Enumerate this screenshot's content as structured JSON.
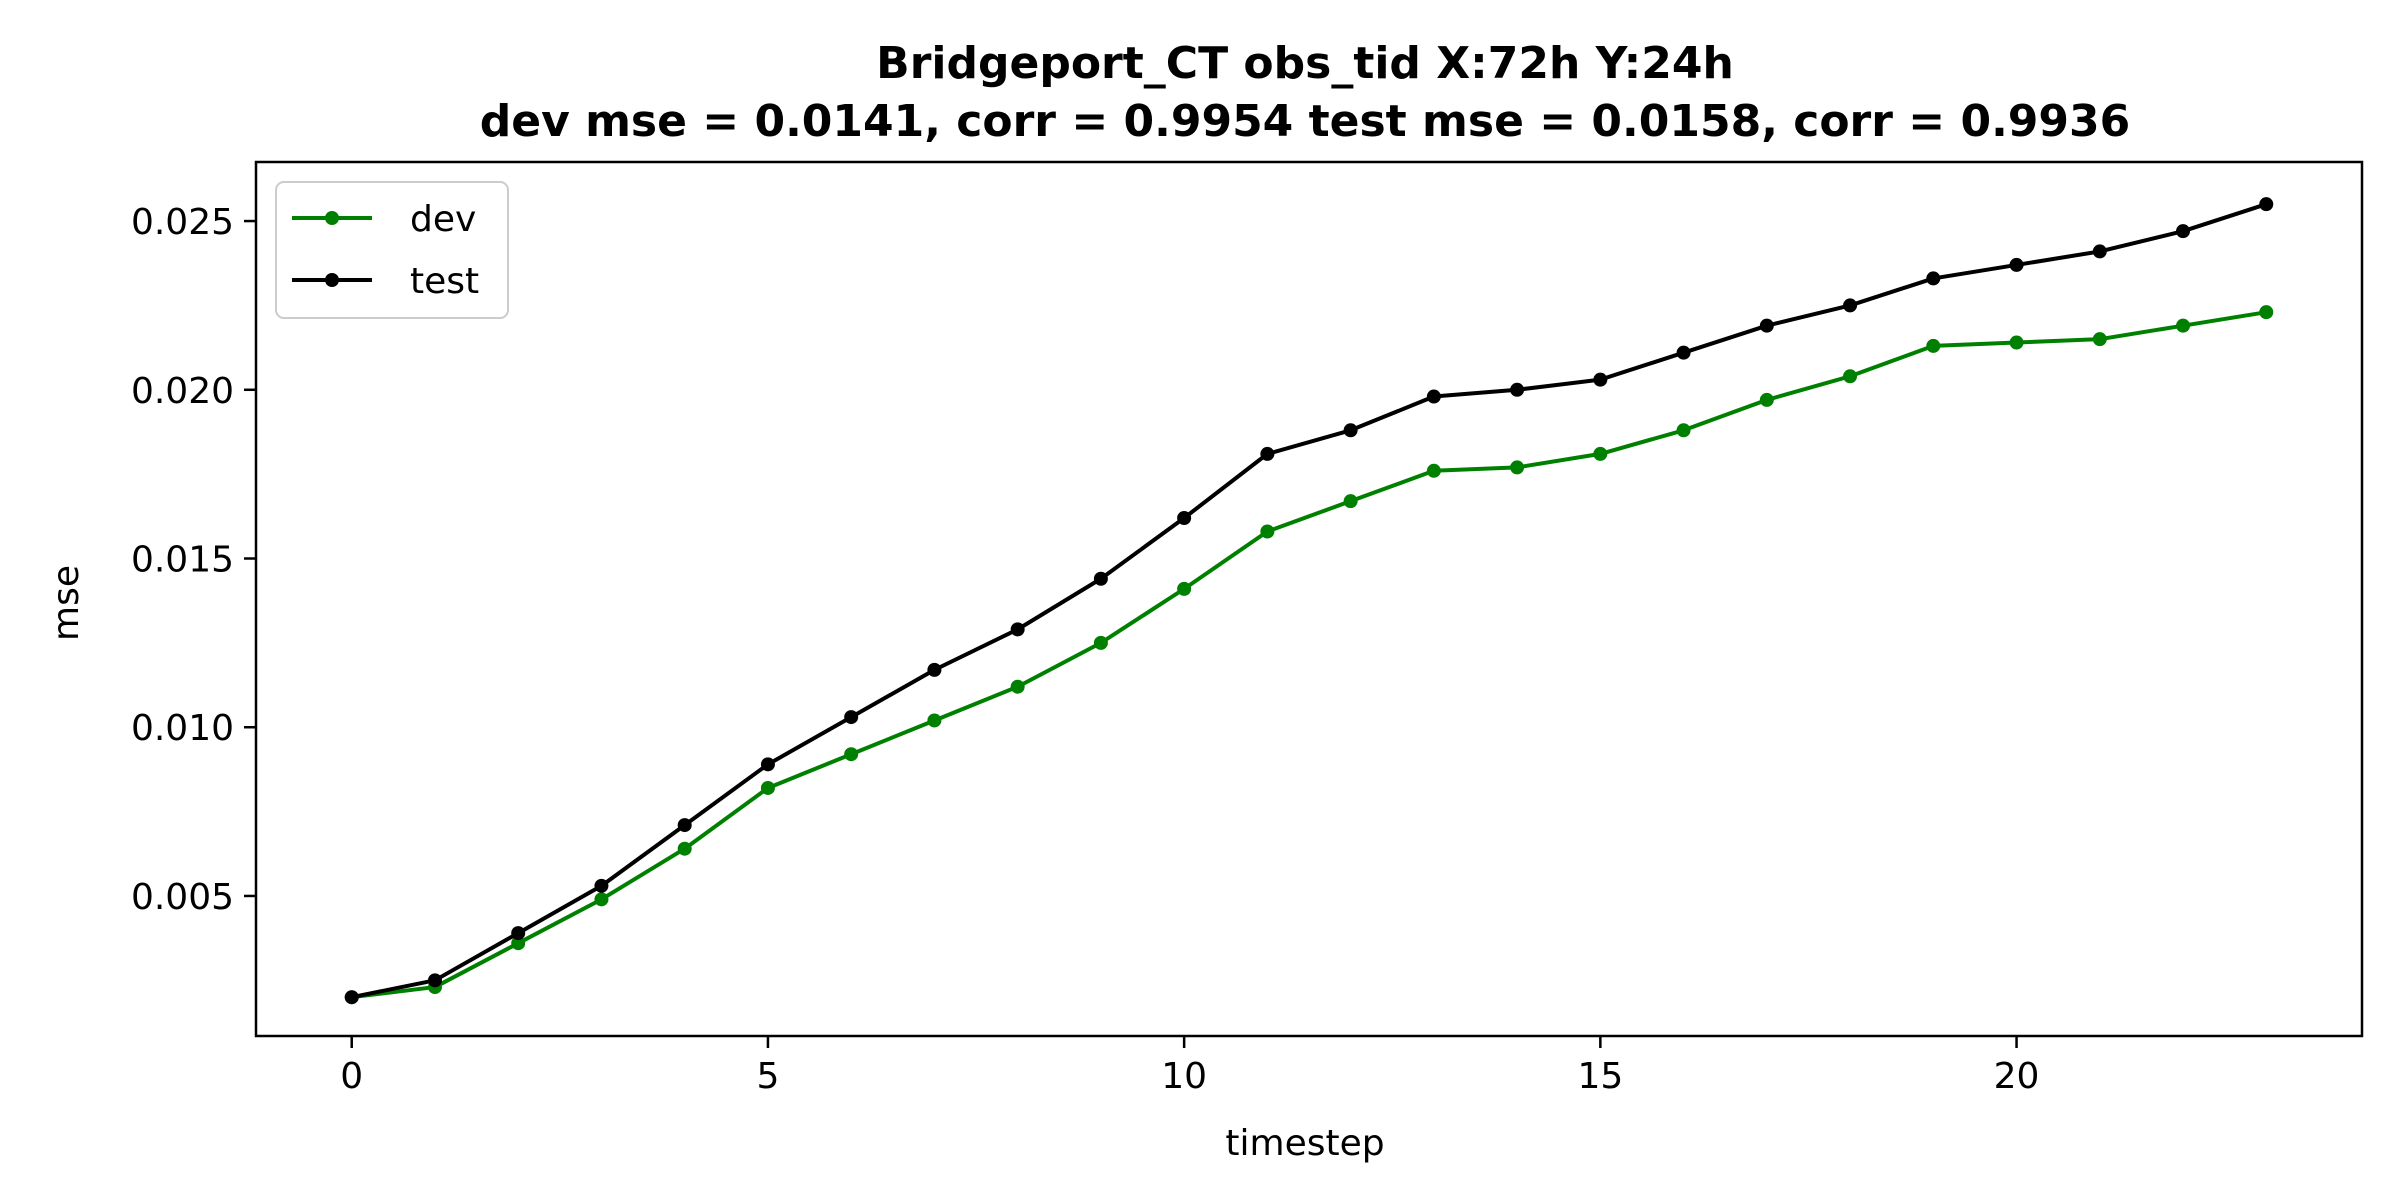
{
  "chart_data": {
    "type": "line",
    "title": "Bridgeport_CT   obs_tid   X:72h   Y:24h",
    "subtitle": "dev mse = 0.0141, corr = 0.9954   test mse = 0.0158, corr = 0.9936",
    "xlabel": "timestep",
    "ylabel": "mse",
    "xlim": [
      -1.15,
      24.15
    ],
    "ylim": [
      0.00085,
      0.02675
    ],
    "xticks": [
      0,
      5,
      10,
      15,
      20
    ],
    "yticks": [
      0.005,
      0.01,
      0.015,
      0.02,
      0.025
    ],
    "xtick_labels": [
      "0",
      "5",
      "10",
      "15",
      "20"
    ],
    "ytick_labels": [
      "0.005",
      "0.010",
      "0.015",
      "0.020",
      "0.025"
    ],
    "grid": false,
    "legend_position": "top-left",
    "x": [
      0,
      1,
      2,
      3,
      4,
      5,
      6,
      7,
      8,
      9,
      10,
      11,
      12,
      13,
      14,
      15,
      16,
      17,
      18,
      19,
      20,
      21,
      22,
      23
    ],
    "series": [
      {
        "name": "dev",
        "color": "#008000",
        "values": [
          0.002,
          0.0023,
          0.0036,
          0.0049,
          0.0064,
          0.0082,
          0.0092,
          0.0102,
          0.0112,
          0.0125,
          0.0141,
          0.0158,
          0.0167,
          0.0176,
          0.0177,
          0.0181,
          0.0188,
          0.0197,
          0.0204,
          0.0213,
          0.0214,
          0.0215,
          0.0219,
          0.0223
        ]
      },
      {
        "name": "test",
        "color": "#000000",
        "values": [
          0.002,
          0.0025,
          0.0039,
          0.0053,
          0.0071,
          0.0089,
          0.0103,
          0.0117,
          0.0129,
          0.0144,
          0.0162,
          0.0181,
          0.0188,
          0.0198,
          0.02,
          0.0203,
          0.0211,
          0.0219,
          0.0225,
          0.0233,
          0.0237,
          0.0241,
          0.0247,
          0.0255
        ]
      }
    ]
  }
}
